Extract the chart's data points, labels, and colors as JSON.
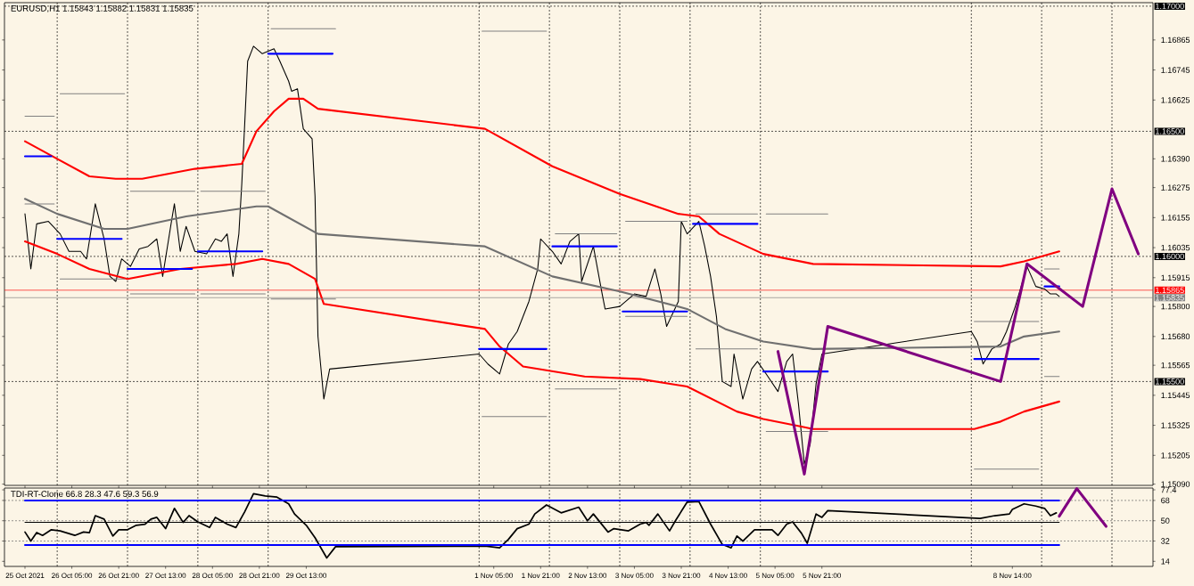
{
  "chart_data": [
    {
      "type": "line",
      "title": "EURUSD,H1  1.15843 1.15882 1.15831 1.15835",
      "tick_labels": "y",
      "xlim": [
        "2021-10-25T06:00",
        "2021-11-10T14:00"
      ],
      "ylim": [
        1.15085,
        1.17014
      ],
      "yticks": [
        {
          "value": 1.16865,
          "label": "1.16865"
        },
        {
          "value": 1.16745,
          "label": "1.16745"
        },
        {
          "value": 1.16625,
          "label": "1.16625"
        },
        {
          "value": 1.1639,
          "label": "1.16390"
        },
        {
          "value": 1.16275,
          "label": "1.16275"
        },
        {
          "value": 1.16155,
          "label": "1.16155"
        },
        {
          "value": 1.16035,
          "label": "1.16035"
        },
        {
          "value": 1.15915,
          "label": "1.15915"
        },
        {
          "value": 1.158,
          "label": "1.15800"
        },
        {
          "value": 1.1568,
          "label": "1.15680"
        },
        {
          "value": 1.15565,
          "label": "1.15565"
        },
        {
          "value": 1.15445,
          "label": "1.15445"
        },
        {
          "value": 1.15325,
          "label": "1.15325"
        },
        {
          "value": 1.15205,
          "label": "1.15205"
        },
        {
          "value": 1.1509,
          "label": "1.15090"
        }
      ],
      "ref_lines": [
        {
          "axis": "y",
          "value": 1.17,
          "label": "1.17000",
          "color": "#000000",
          "line_style": "dashed"
        },
        {
          "axis": "y",
          "value": 1.165,
          "label": "1.16500",
          "color": "#000000",
          "line_style": "dashed"
        },
        {
          "axis": "y",
          "value": 1.16,
          "label": "1.16000",
          "color": "#000000",
          "line_style": "dashed"
        },
        {
          "axis": "y",
          "value": 1.155,
          "label": "1.15500",
          "color": "#000000",
          "line_style": "dashed"
        },
        {
          "axis": "y",
          "value": 1.15865,
          "label": "1.15865",
          "color": "#ff0000",
          "line_style": "solid"
        },
        {
          "axis": "y",
          "value": 1.15835,
          "label": "1.15835",
          "color": "#808080",
          "line_style": "solid"
        },
        {
          "axis": "x",
          "value": "2021-10-26T00:00",
          "color": "#000000",
          "line_style": "dashed"
        },
        {
          "axis": "x",
          "value": "2021-10-27T00:00",
          "color": "#000000",
          "line_style": "dashed"
        },
        {
          "axis": "x",
          "value": "2021-10-28T00:00",
          "color": "#000000",
          "line_style": "dashed"
        },
        {
          "axis": "x",
          "value": "2021-10-29T00:00",
          "color": "#000000",
          "line_style": "dashed"
        },
        {
          "axis": "x",
          "value": "2021-11-01T00:00",
          "color": "#000000",
          "line_style": "dashed"
        },
        {
          "axis": "x",
          "value": "2021-11-02T00:00",
          "color": "#000000",
          "line_style": "dashed"
        },
        {
          "axis": "x",
          "value": "2021-11-03T00:00",
          "color": "#000000",
          "line_style": "dashed"
        },
        {
          "axis": "x",
          "value": "2021-11-04T00:00",
          "color": "#000000",
          "line_style": "dashed"
        },
        {
          "axis": "x",
          "value": "2021-11-05T00:00",
          "color": "#000000",
          "line_style": "dashed"
        },
        {
          "axis": "x",
          "value": "2021-11-08T00:00",
          "color": "#000000",
          "line_style": "dashed"
        },
        {
          "axis": "x",
          "value": "2021-11-09T00:00",
          "color": "#000000",
          "line_style": "dashed"
        },
        {
          "axis": "x",
          "value": "2021-11-10T00:00",
          "color": "#000000",
          "line_style": "dashed"
        }
      ],
      "series": [
        {
          "color": "#000000",
          "x": [
            "2021-10-25T13:00",
            "2021-10-25T15:00",
            "2021-10-25T17:00",
            "2021-10-25T21:00",
            "2021-10-26T01:00",
            "2021-10-26T04:00",
            "2021-10-26T08:00",
            "2021-10-26T10:00",
            "2021-10-26T13:00",
            "2021-10-26T16:00",
            "2021-10-26T18:00",
            "2021-10-26T20:00",
            "2021-10-26T22:00",
            "2021-10-27T01:00",
            "2021-10-27T04:00",
            "2021-10-27T07:00",
            "2021-10-27T10:00",
            "2021-10-27T12:00",
            "2021-10-27T15:00",
            "2021-10-27T16:00",
            "2021-10-27T18:00",
            "2021-10-27T20:00",
            "2021-10-27T23:00",
            "2021-10-28T03:00",
            "2021-10-28T06:00",
            "2021-10-28T08:00",
            "2021-10-28T10:00",
            "2021-10-28T12:00",
            "2021-10-28T14:00",
            "2021-10-28T15:00",
            "2021-10-28T16:00",
            "2021-10-28T17:00",
            "2021-10-28T19:00",
            "2021-10-28T22:00",
            "2021-10-29T02:00",
            "2021-10-29T04:00",
            "2021-10-29T07:00",
            "2021-10-29T08:00",
            "2021-10-29T10:00",
            "2021-10-29T12:00",
            "2021-10-29T15:00",
            "2021-10-29T16:00",
            "2021-10-29T17:00",
            "2021-10-29T19:00",
            "2021-10-29T21:00",
            "2021-11-01T00:00",
            "2021-11-01T03:00",
            "2021-11-01T07:00",
            "2021-11-01T10:00",
            "2021-11-01T13:00",
            "2021-11-01T17:00",
            "2021-11-01T20:00",
            "2021-11-01T21:00",
            "2021-11-02T01:00",
            "2021-11-02T04:00",
            "2021-11-02T07:00",
            "2021-11-02T10:00",
            "2021-11-02T11:00",
            "2021-11-02T15:00",
            "2021-11-02T18:00",
            "2021-11-02T19:00",
            "2021-11-03T00:00",
            "2021-11-03T05:00",
            "2021-11-03T09:00",
            "2021-11-03T12:00",
            "2021-11-03T14:00",
            "2021-11-03T16:00",
            "2021-11-03T20:00",
            "2021-11-03T21:00",
            "2021-11-03T23:00",
            "2021-11-04T03:00",
            "2021-11-04T05:00",
            "2021-11-04T07:00",
            "2021-11-04T09:00",
            "2021-11-04T11:00",
            "2021-11-04T14:00",
            "2021-11-04T15:00",
            "2021-11-04T18:00",
            "2021-11-04T21:00",
            "2021-11-04T23:00",
            "2021-11-05T02:00",
            "2021-11-05T06:00",
            "2021-11-05T09:00",
            "2021-11-05T11:00",
            "2021-11-05T13:00",
            "2021-11-05T15:00",
            "2021-11-05T17:00",
            "2021-11-05T19:00",
            "2021-11-05T21:00",
            "2021-11-08T00:00",
            "2021-11-08T02:00",
            "2021-11-08T04:00",
            "2021-11-08T07:00",
            "2021-11-08T10:00",
            "2021-11-08T12:00",
            "2021-11-08T15:00",
            "2021-11-08T19:00",
            "2021-11-08T22:00",
            "2021-11-09T01:00",
            "2021-11-09T03:00",
            "2021-11-09T05:00",
            "2021-11-09T06:00"
          ],
          "values": [
            1.1617,
            1.1595,
            1.1613,
            1.1614,
            1.1609,
            1.1602,
            1.1602,
            1.1599,
            1.1621,
            1.1607,
            1.1592,
            1.159,
            1.1599,
            1.1596,
            1.1603,
            1.1604,
            1.1607,
            1.1592,
            1.1614,
            1.1621,
            1.1602,
            1.1612,
            1.1602,
            1.1601,
            1.1607,
            1.1606,
            1.1609,
            1.1592,
            1.1609,
            1.1629,
            1.1653,
            1.1678,
            1.1684,
            1.1681,
            1.1683,
            1.1678,
            1.167,
            1.1666,
            1.1667,
            1.1651,
            1.1647,
            1.1624,
            1.1568,
            1.1543,
            1.1555,
            1.1561,
            1.1557,
            1.1553,
            1.1565,
            1.157,
            1.1582,
            1.1595,
            1.1607,
            1.1602,
            1.1597,
            1.1606,
            1.1609,
            1.159,
            1.1604,
            1.1585,
            1.1579,
            1.158,
            1.1585,
            1.1584,
            1.1595,
            1.1585,
            1.1572,
            1.1582,
            1.1614,
            1.1609,
            1.1614,
            1.1604,
            1.1592,
            1.1576,
            1.155,
            1.1548,
            1.1561,
            1.1543,
            1.1555,
            1.1558,
            1.1553,
            1.1546,
            1.1558,
            1.1561,
            1.1541,
            1.1517,
            1.1525,
            1.1549,
            1.1561,
            1.157,
            1.1566,
            1.1557,
            1.1563,
            1.1565,
            1.157,
            1.158,
            1.1596,
            1.1588,
            1.1587,
            1.1585,
            1.1585,
            1.1584
          ]
        },
        {
          "color": "#ff0000",
          "x": [
            "2021-10-25T13:00",
            "2021-10-26T00:00",
            "2021-10-26T11:00",
            "2021-10-26T20:00",
            "2021-10-27T05:00",
            "2021-10-27T23:00",
            "2021-10-28T15:00",
            "2021-10-28T20:00",
            "2021-10-29T02:00",
            "2021-10-29T07:00",
            "2021-10-29T12:00",
            "2021-10-29T17:00",
            "2021-11-01T02:00",
            "2021-11-02T01:00",
            "2021-11-03T00:00",
            "2021-11-03T20:00",
            "2021-11-04T03:00",
            "2021-11-04T10:00",
            "2021-11-05T01:00",
            "2021-11-05T18:00",
            "2021-11-08T10:00",
            "2021-11-08T18:00",
            "2021-11-09T06:00"
          ],
          "values": [
            1.1646,
            1.1639,
            1.1632,
            1.1631,
            1.1631,
            1.1635,
            1.1637,
            1.165,
            1.1658,
            1.1663,
            1.1663,
            1.1659,
            1.1651,
            1.1636,
            1.1625,
            1.1617,
            1.1616,
            1.1609,
            1.1601,
            1.1597,
            1.1596,
            1.1598,
            1.1602
          ]
        },
        {
          "color": "#707070",
          "x": [
            "2021-10-25T13:00",
            "2021-10-26T00:00",
            "2021-10-26T16:00",
            "2021-10-27T00:00",
            "2021-10-27T20:00",
            "2021-10-28T20:00",
            "2021-10-29T00:00",
            "2021-10-29T17:00",
            "2021-11-01T02:00",
            "2021-11-02T01:00",
            "2021-11-03T00:00",
            "2021-11-03T23:00",
            "2021-11-04T12:00",
            "2021-11-05T01:00",
            "2021-11-05T18:00",
            "2021-11-08T10:00",
            "2021-11-08T18:00",
            "2021-11-09T06:00"
          ],
          "values": [
            1.1623,
            1.1617,
            1.1611,
            1.1611,
            1.1616,
            1.162,
            1.162,
            1.1609,
            1.1604,
            1.1592,
            1.1586,
            1.1579,
            1.1571,
            1.1566,
            1.1563,
            1.1564,
            1.1568,
            1.157
          ]
        },
        {
          "color": "#ff0000",
          "x": [
            "2021-10-25T13:00",
            "2021-10-26T00:00",
            "2021-10-26T11:00",
            "2021-10-27T00:00",
            "2021-10-27T18:00",
            "2021-10-28T13:00",
            "2021-10-28T22:00",
            "2021-10-29T07:00",
            "2021-10-29T16:00",
            "2021-10-29T19:00",
            "2021-11-01T02:00",
            "2021-11-01T07:00",
            "2021-11-01T15:00",
            "2021-11-02T12:00",
            "2021-11-03T07:00",
            "2021-11-03T23:00",
            "2021-11-04T16:00",
            "2021-11-05T01:00",
            "2021-11-05T14:00",
            "2021-11-05T18:00",
            "2021-11-08T01:00",
            "2021-11-08T10:00",
            "2021-11-08T18:00",
            "2021-11-09T06:00"
          ],
          "values": [
            1.1606,
            1.1601,
            1.1595,
            1.1591,
            1.1595,
            1.1597,
            1.1599,
            1.1597,
            1.1591,
            1.1581,
            1.1571,
            1.1564,
            1.1556,
            1.1552,
            1.1551,
            1.1548,
            1.1538,
            1.1535,
            1.1532,
            1.1531,
            1.1531,
            1.1534,
            1.1538,
            1.1542
          ]
        },
        {
          "color": "#0000ff",
          "x": [
            "2021-10-25T13:00",
            "2021-10-25T22:00",
            "2021-10-25T23:00",
            "2021-10-26T00:00",
            "2021-10-26T22:00",
            "2021-10-26T23:00",
            "2021-10-27T00:00",
            "2021-10-27T22:00",
            "2021-10-27T23:00",
            "2021-10-28T00:00",
            "2021-10-28T22:00",
            "2021-10-28T23:00",
            "2021-10-29T00:00",
            "2021-10-29T22:00",
            "2021-10-29T23:00",
            "2021-11-01T00:00",
            "2021-11-01T23:00",
            "2021-11-02T00:00",
            "2021-11-02T01:00",
            "2021-11-02T23:00",
            "2021-11-03T00:00",
            "2021-11-03T01:00",
            "2021-11-03T23:00",
            "2021-11-04T00:00",
            "2021-11-04T01:00",
            "2021-11-04T23:00",
            "2021-11-05T00:00",
            "2021-11-05T01:00",
            "2021-11-05T23:00",
            "2021-11-08T00:00",
            "2021-11-08T01:00",
            "2021-11-08T23:00",
            "2021-11-09T00:00",
            "2021-11-09T01:00",
            "2021-11-09T06:00"
          ],
          "values": [
            1.164,
            1.164,
            null,
            1.1607,
            1.1607,
            null,
            1.1595,
            1.1595,
            null,
            1.1602,
            1.1602,
            null,
            1.1681,
            1.1681,
            null,
            1.1563,
            1.1563,
            null,
            1.1604,
            1.1604,
            null,
            1.1578,
            1.1578,
            null,
            1.1613,
            1.1613,
            null,
            1.1554,
            1.1554,
            null,
            1.1559,
            1.1559,
            null,
            1.1588,
            1.1588
          ]
        },
        {
          "color": "#808080",
          "x": [
            "2021-10-25T13:00",
            "2021-10-25T23:00",
            "2021-10-26T00:00",
            "2021-10-26T01:00",
            "2021-10-26T23:00",
            "2021-10-27T00:00",
            "2021-10-27T01:00",
            "2021-10-27T23:00",
            "2021-10-28T00:00",
            "2021-10-28T01:00",
            "2021-10-28T23:00",
            "2021-10-29T00:00",
            "2021-10-29T01:00",
            "2021-10-29T23:00",
            "2021-10-30T00:00",
            "2021-11-01T01:00",
            "2021-11-01T23:00",
            "2021-11-02T00:00",
            "2021-11-02T02:00",
            "2021-11-02T23:00",
            "2021-11-03T00:00",
            "2021-11-03T02:00",
            "2021-11-03T23:00",
            "2021-11-04T00:00",
            "2021-11-04T02:00",
            "2021-11-04T23:00",
            "2021-11-05T00:00",
            "2021-11-05T02:00",
            "2021-11-05T23:00",
            "2021-11-06T00:00",
            "2021-11-08T01:00",
            "2021-11-08T23:00",
            "2021-11-09T00:00",
            "2021-11-09T01:00",
            "2021-11-09T06:00"
          ],
          "values": [
            1.1656,
            1.1656,
            null,
            1.1665,
            1.1665,
            null,
            1.1626,
            1.1626,
            null,
            1.1626,
            1.1626,
            null,
            1.1691,
            1.1691,
            null,
            1.169,
            1.169,
            null,
            1.1609,
            1.1609,
            null,
            1.1614,
            1.1614,
            null,
            1.1617,
            1.1617,
            null,
            1.1617,
            1.1617,
            null,
            1.1574,
            1.1574,
            null,
            1.1595,
            1.1595
          ]
        },
        {
          "color": "#808080",
          "x": [
            "2021-10-25T13:00",
            "2021-10-25T23:00",
            "2021-10-26T00:00",
            "2021-10-26T01:00",
            "2021-10-26T23:00",
            "2021-10-27T00:00",
            "2021-10-27T01:00",
            "2021-10-27T23:00",
            "2021-10-28T00:00",
            "2021-10-28T01:00",
            "2021-10-28T23:00",
            "2021-10-29T00:00",
            "2021-10-29T01:00",
            "2021-10-29T23:00",
            "2021-10-30T00:00",
            "2021-11-01T01:00",
            "2021-11-01T23:00",
            "2021-11-02T00:00",
            "2021-11-02T02:00",
            "2021-11-02T23:00",
            "2021-11-03T00:00",
            "2021-11-03T02:00",
            "2021-11-03T23:00",
            "2021-11-04T00:00",
            "2021-11-04T02:00",
            "2021-11-04T23:00",
            "2021-11-05T00:00",
            "2021-11-05T02:00",
            "2021-11-05T23:00",
            "2021-11-06T00:00",
            "2021-11-08T01:00",
            "2021-11-08T23:00",
            "2021-11-09T00:00",
            "2021-11-09T01:00",
            "2021-11-09T06:00"
          ],
          "values": [
            1.1621,
            1.1621,
            null,
            1.1591,
            1.1591,
            null,
            1.1585,
            1.1585,
            null,
            1.1585,
            1.1585,
            null,
            1.1583,
            1.1583,
            null,
            1.1536,
            1.1536,
            null,
            1.1547,
            1.1547,
            null,
            1.1576,
            1.1576,
            null,
            1.1563,
            1.1563,
            null,
            1.153,
            1.153,
            null,
            1.1515,
            1.1515,
            null,
            1.1552,
            1.1552
          ]
        },
        {
          "color": "#800080",
          "x": [
            "2021-11-05T06:00",
            "2021-11-05T15:00",
            "2021-11-05T23:00",
            "2021-11-08T10:00",
            "2021-11-08T19:00",
            "2021-11-09T14:00",
            "2021-11-10T00:00",
            "2021-11-10T09:00"
          ],
          "values": [
            1.1562,
            1.1513,
            1.1572,
            1.155,
            1.1597,
            1.158,
            1.1627,
            1.1601
          ]
        }
      ]
    },
    {
      "type": "line",
      "title": "TDI-RT-Clone 66.8 28.3 47.6 59.3 56.9",
      "xlim": [
        "2021-10-25T06:00",
        "2021-11-10T14:00"
      ],
      "ylim": [
        9.5,
        79
      ],
      "xticks": [
        {
          "value": "2021-10-25T13:00",
          "label": "25 Oct 2021"
        },
        {
          "value": "2021-10-26T05:00",
          "label": "26 Oct 05:00"
        },
        {
          "value": "2021-10-26T21:00",
          "label": "26 Oct 21:00"
        },
        {
          "value": "2021-10-27T13:00",
          "label": "27 Oct 13:00"
        },
        {
          "value": "2021-10-28T05:00",
          "label": "28 Oct 05:00"
        },
        {
          "value": "2021-10-28T21:00",
          "label": "28 Oct 21:00"
        },
        {
          "value": "2021-10-29T13:00",
          "label": "29 Oct 13:00"
        },
        {
          "value": "2021-11-01T05:00",
          "label": "1 Nov 05:00"
        },
        {
          "value": "2021-11-01T21:00",
          "label": "1 Nov 21:00"
        },
        {
          "value": "2021-11-02T13:00",
          "label": "2 Nov 13:00"
        },
        {
          "value": "2021-11-03T05:00",
          "label": "3 Nov 05:00"
        },
        {
          "value": "2021-11-03T21:00",
          "label": "3 Nov 21:00"
        },
        {
          "value": "2021-11-04T13:00",
          "label": "4 Nov 13:00"
        },
        {
          "value": "2021-11-05T05:00",
          "label": "5 Nov 05:00"
        },
        {
          "value": "2021-11-05T21:00",
          "label": "5 Nov 21:00"
        },
        {
          "value": "2021-11-08T14:00",
          "label": "8 Nov 14:00"
        }
      ],
      "yticks": [
        14,
        32,
        50,
        68,
        77.4
      ],
      "ref_lines": [
        {
          "axis": "y",
          "value": 68,
          "color": "#606060",
          "line_style": "dashed"
        },
        {
          "axis": "y",
          "value": 50,
          "color": "#606060",
          "line_style": "dashed"
        },
        {
          "axis": "y",
          "value": 32,
          "color": "#606060",
          "line_style": "dashed"
        },
        {
          "axis": "x",
          "value": "2021-10-26T00:00",
          "color": "#000000",
          "line_style": "dashed"
        },
        {
          "axis": "x",
          "value": "2021-10-27T00:00",
          "color": "#000000",
          "line_style": "dashed"
        },
        {
          "axis": "x",
          "value": "2021-10-28T00:00",
          "color": "#000000",
          "line_style": "dashed"
        },
        {
          "axis": "x",
          "value": "2021-10-29T00:00",
          "color": "#000000",
          "line_style": "dashed"
        },
        {
          "axis": "x",
          "value": "2021-11-01T00:00",
          "color": "#000000",
          "line_style": "dashed"
        },
        {
          "axis": "x",
          "value": "2021-11-02T00:00",
          "color": "#000000",
          "line_style": "dashed"
        },
        {
          "axis": "x",
          "value": "2021-11-03T00:00",
          "color": "#000000",
          "line_style": "dashed"
        },
        {
          "axis": "x",
          "value": "2021-11-04T00:00",
          "color": "#000000",
          "line_style": "dashed"
        },
        {
          "axis": "x",
          "value": "2021-11-05T00:00",
          "color": "#000000",
          "line_style": "dashed"
        },
        {
          "axis": "x",
          "value": "2021-11-08T00:00",
          "color": "#000000",
          "line_style": "dashed"
        },
        {
          "axis": "x",
          "value": "2021-11-09T00:00",
          "color": "#000000",
          "line_style": "dashed"
        },
        {
          "axis": "x",
          "value": "2021-11-10T00:00",
          "color": "#000000",
          "line_style": "dashed"
        }
      ],
      "series": [
        {
          "color": "#000000",
          "x": [
            "2021-10-25T13:00",
            "2021-10-25T15:00",
            "2021-10-25T17:00",
            "2021-10-25T19:00",
            "2021-10-25T22:00",
            "2021-10-26T01:00",
            "2021-10-26T06:00",
            "2021-10-26T09:00",
            "2021-10-26T11:00",
            "2021-10-26T13:00",
            "2021-10-26T16:00",
            "2021-10-26T19:00",
            "2021-10-26T21:00",
            "2021-10-27T00:00",
            "2021-10-27T03:00",
            "2021-10-27T06:00",
            "2021-10-27T08:00",
            "2021-10-27T10:00",
            "2021-10-27T13:00",
            "2021-10-27T16:00",
            "2021-10-27T19:00",
            "2021-10-27T21:00",
            "2021-10-28T00:00",
            "2021-10-28T04:00",
            "2021-10-28T06:00",
            "2021-10-28T10:00",
            "2021-10-28T13:00",
            "2021-10-28T16:00",
            "2021-10-28T19:00",
            "2021-10-28T23:00",
            "2021-10-29T03:00",
            "2021-10-29T07:00",
            "2021-10-29T09:00",
            "2021-10-29T13:00",
            "2021-10-29T16:00",
            "2021-10-29T20:00",
            "2021-10-29T23:00",
            "2021-11-01T02:00",
            "2021-11-01T07:00",
            "2021-11-01T10:00",
            "2021-11-01T13:00",
            "2021-11-01T17:00",
            "2021-11-01T19:00",
            "2021-11-01T23:00",
            "2021-11-02T04:00",
            "2021-11-02T10:00",
            "2021-11-02T13:00",
            "2021-11-02T15:00",
            "2021-11-02T20:00",
            "2021-11-02T22:00",
            "2021-11-03T03:00",
            "2021-11-03T07:00",
            "2021-11-03T09:00",
            "2021-11-03T10:00",
            "2021-11-03T13:00",
            "2021-11-03T17:00",
            "2021-11-03T19:00",
            "2021-11-03T23:00",
            "2021-11-04T03:00",
            "2021-11-04T07:00",
            "2021-11-04T11:00",
            "2021-11-04T14:00",
            "2021-11-04T16:00",
            "2021-11-04T18:00",
            "2021-11-04T22:00",
            "2021-11-05T04:00",
            "2021-11-05T06:00",
            "2021-11-05T09:00",
            "2021-11-05T11:00",
            "2021-11-05T14:00",
            "2021-11-05T16:00",
            "2021-11-05T19:00",
            "2021-11-05T21:00",
            "2021-11-05T23:00",
            "2021-11-08T03:00",
            "2021-11-08T08:00",
            "2021-11-08T13:00",
            "2021-11-08T14:00",
            "2021-11-08T18:00",
            "2021-11-08T22:00",
            "2021-11-09T01:00",
            "2021-11-09T03:00",
            "2021-11-09T05:00"
          ],
          "values": [
            40,
            32,
            39.5,
            37,
            42,
            41,
            37,
            40,
            39.5,
            54.5,
            51.5,
            36.5,
            42,
            42,
            46,
            47,
            51.5,
            53,
            43,
            61,
            48.5,
            54.5,
            49,
            44,
            53,
            47,
            44,
            58,
            74,
            72,
            71,
            65,
            56,
            46,
            35,
            17,
            27,
            27.5,
            26,
            33.5,
            43,
            47,
            56,
            64,
            57,
            62,
            50,
            56,
            40,
            43,
            41,
            47,
            48.5,
            46,
            56,
            41,
            50,
            66.5,
            67,
            47,
            29,
            26,
            36.5,
            32,
            42,
            42,
            37,
            47,
            49,
            39,
            30,
            56,
            53,
            59,
            52,
            54.5,
            56,
            60,
            65,
            63,
            61,
            54.5,
            57
          ]
        },
        {
          "color": "#0000ff",
          "x": [
            "2021-10-25T13:00",
            "2021-11-09T06:00"
          ],
          "values": [
            68,
            68
          ]
        },
        {
          "color": "#000000",
          "x": [
            "2021-10-25T13:00",
            "2021-11-09T06:00"
          ],
          "values": [
            48.5,
            48.5
          ]
        },
        {
          "color": "#0000ff",
          "x": [
            "2021-10-25T13:00",
            "2021-11-09T06:00"
          ],
          "values": [
            28.5,
            28.5
          ]
        },
        {
          "color": "#800080",
          "x": [
            "2021-11-09T06:00",
            "2021-11-09T12:00",
            "2021-11-09T22:00"
          ],
          "values": [
            54,
            78.5,
            45
          ]
        }
      ]
    }
  ]
}
